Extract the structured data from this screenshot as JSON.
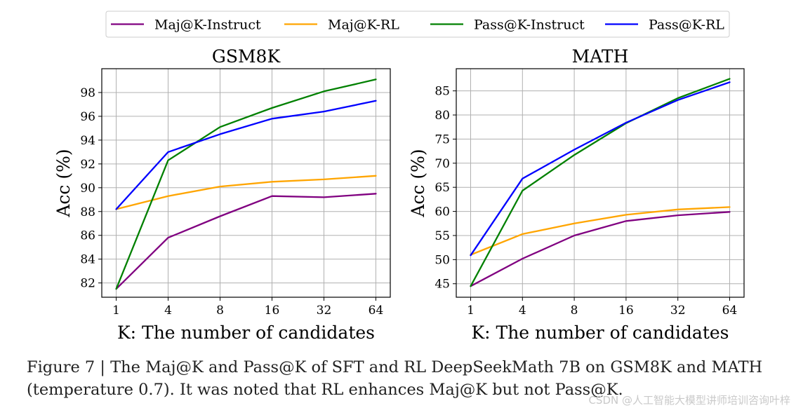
{
  "legend": [
    "Maj@K-Instruct",
    "Maj@K-RL",
    "Pass@K-Instruct",
    "Pass@K-RL"
  ],
  "colors": {
    "Maj@K-Instruct": "#800080",
    "Maj@K-RL": "#FFA500",
    "Pass@K-Instruct": "#008000",
    "Pass@K-RL": "#0000FF"
  },
  "chart_data": [
    {
      "type": "line",
      "title": "GSM8K",
      "xlabel": "K: The number of candidates",
      "ylabel": "Acc (%)",
      "x": [
        "1",
        "4",
        "8",
        "16",
        "32",
        "64"
      ],
      "ylim": [
        80.8,
        100
      ],
      "yticks": [
        82,
        84,
        86,
        88,
        90,
        92,
        94,
        96,
        98
      ],
      "grid": true,
      "series": [
        {
          "name": "Maj@K-Instruct",
          "values": [
            81.5,
            85.8,
            87.6,
            89.3,
            89.2,
            89.5
          ]
        },
        {
          "name": "Maj@K-RL",
          "values": [
            88.2,
            89.3,
            90.1,
            90.5,
            90.7,
            91.0
          ]
        },
        {
          "name": "Pass@K-Instruct",
          "values": [
            81.5,
            92.3,
            95.1,
            96.7,
            98.1,
            99.1
          ]
        },
        {
          "name": "Pass@K-RL",
          "values": [
            88.2,
            93.0,
            94.5,
            95.8,
            96.4,
            97.3
          ]
        }
      ]
    },
    {
      "type": "line",
      "title": "MATH",
      "xlabel": "K: The number of candidates",
      "ylabel": "Acc (%)",
      "x": [
        "1",
        "4",
        "8",
        "16",
        "32",
        "64"
      ],
      "ylim": [
        42.2,
        89.6
      ],
      "yticks": [
        45,
        50,
        55,
        60,
        65,
        70,
        75,
        80,
        85
      ],
      "grid": true,
      "series": [
        {
          "name": "Maj@K-Instruct",
          "values": [
            44.5,
            50.2,
            55.0,
            58.0,
            59.2,
            59.9
          ]
        },
        {
          "name": "Maj@K-RL",
          "values": [
            51.0,
            55.3,
            57.5,
            59.3,
            60.4,
            60.9
          ]
        },
        {
          "name": "Pass@K-Instruct",
          "values": [
            44.5,
            64.3,
            71.7,
            78.3,
            83.5,
            87.5
          ]
        },
        {
          "name": "Pass@K-RL",
          "values": [
            50.9,
            66.8,
            72.8,
            78.4,
            83.1,
            86.8
          ]
        }
      ]
    }
  ],
  "caption": "Figure 7 | The Maj@K and Pass@K of SFT and RL DeepSeekMath 7B on GSM8K and MATH (temperature 0.7). It was noted that RL enhances Maj@K but not Pass@K.",
  "watermark": "CSDN @人工智能大模型讲师培训咨询叶梓"
}
